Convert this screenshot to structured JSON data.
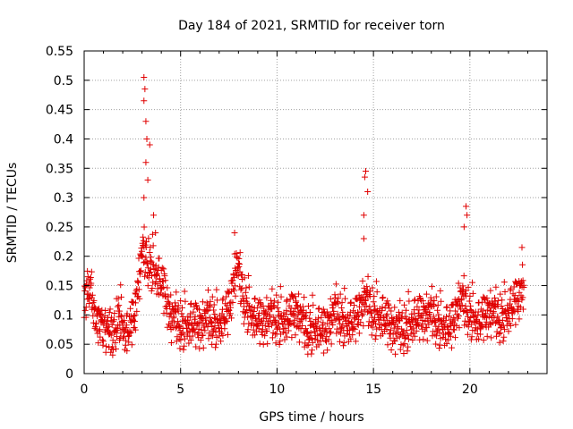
{
  "chart_data": {
    "type": "scatter",
    "title": "Day 184 of 2021, SRMTID for receiver torn",
    "xlabel": "GPS time / hours",
    "ylabel": "SRMTID / TECUs",
    "xlim": [
      0,
      24
    ],
    "ylim": [
      0,
      0.55
    ],
    "x_ticks": [
      0,
      5,
      10,
      15,
      20
    ],
    "x_tick_labels": [
      "0",
      "5",
      "10",
      "15",
      "20"
    ],
    "y_ticks": [
      0,
      0.05,
      0.1,
      0.15,
      0.2,
      0.25,
      0.3,
      0.35,
      0.4,
      0.45,
      0.5,
      0.55
    ],
    "y_tick_labels": [
      "0",
      "0.05",
      "0.1",
      "0.15",
      "0.2",
      "0.25",
      "0.3",
      "0.35",
      "0.4",
      "0.45",
      "0.5",
      "0.55"
    ],
    "grid": true,
    "marker": "+",
    "marker_color": "#e00000",
    "data_range_hours": [
      0,
      22.8
    ],
    "typical_range": [
      0.03,
      0.15
    ],
    "peaks": [
      {
        "x": 3.1,
        "y": 0.505
      },
      {
        "x": 3.15,
        "y": 0.485
      },
      {
        "x": 3.1,
        "y": 0.465
      },
      {
        "x": 3.2,
        "y": 0.43
      },
      {
        "x": 3.25,
        "y": 0.4
      },
      {
        "x": 3.4,
        "y": 0.39
      },
      {
        "x": 3.2,
        "y": 0.36
      },
      {
        "x": 3.3,
        "y": 0.33
      },
      {
        "x": 3.1,
        "y": 0.3
      },
      {
        "x": 3.6,
        "y": 0.27
      },
      {
        "x": 3.7,
        "y": 0.24
      },
      {
        "x": 7.8,
        "y": 0.24
      },
      {
        "x": 14.6,
        "y": 0.345
      },
      {
        "x": 14.55,
        "y": 0.335
      },
      {
        "x": 14.7,
        "y": 0.31
      },
      {
        "x": 14.5,
        "y": 0.27
      },
      {
        "x": 14.5,
        "y": 0.23
      },
      {
        "x": 19.8,
        "y": 0.285
      },
      {
        "x": 19.85,
        "y": 0.27
      },
      {
        "x": 19.7,
        "y": 0.25
      },
      {
        "x": 22.7,
        "y": 0.215
      }
    ],
    "envelope": [
      {
        "x": 0.0,
        "y": 0.11
      },
      {
        "x": 0.3,
        "y": 0.15
      },
      {
        "x": 0.6,
        "y": 0.1
      },
      {
        "x": 1.0,
        "y": 0.07
      },
      {
        "x": 1.5,
        "y": 0.06
      },
      {
        "x": 1.8,
        "y": 0.1
      },
      {
        "x": 2.2,
        "y": 0.06
      },
      {
        "x": 2.6,
        "y": 0.09
      },
      {
        "x": 3.0,
        "y": 0.2
      },
      {
        "x": 3.5,
        "y": 0.18
      },
      {
        "x": 4.0,
        "y": 0.15
      },
      {
        "x": 4.5,
        "y": 0.09
      },
      {
        "x": 5.0,
        "y": 0.08
      },
      {
        "x": 5.5,
        "y": 0.08
      },
      {
        "x": 6.0,
        "y": 0.075
      },
      {
        "x": 6.5,
        "y": 0.09
      },
      {
        "x": 7.0,
        "y": 0.08
      },
      {
        "x": 7.5,
        "y": 0.1
      },
      {
        "x": 7.9,
        "y": 0.18
      },
      {
        "x": 8.3,
        "y": 0.12
      },
      {
        "x": 8.8,
        "y": 0.09
      },
      {
        "x": 9.2,
        "y": 0.08
      },
      {
        "x": 9.6,
        "y": 0.09
      },
      {
        "x": 10.0,
        "y": 0.09
      },
      {
        "x": 10.5,
        "y": 0.085
      },
      {
        "x": 11.0,
        "y": 0.1
      },
      {
        "x": 11.5,
        "y": 0.07
      },
      {
        "x": 12.0,
        "y": 0.075
      },
      {
        "x": 12.5,
        "y": 0.065
      },
      {
        "x": 13.0,
        "y": 0.1
      },
      {
        "x": 13.5,
        "y": 0.085
      },
      {
        "x": 14.0,
        "y": 0.08
      },
      {
        "x": 14.5,
        "y": 0.12
      },
      {
        "x": 15.0,
        "y": 0.1
      },
      {
        "x": 15.5,
        "y": 0.09
      },
      {
        "x": 16.0,
        "y": 0.07
      },
      {
        "x": 16.5,
        "y": 0.07
      },
      {
        "x": 17.0,
        "y": 0.085
      },
      {
        "x": 17.5,
        "y": 0.09
      },
      {
        "x": 18.0,
        "y": 0.095
      },
      {
        "x": 18.5,
        "y": 0.08
      },
      {
        "x": 19.0,
        "y": 0.07
      },
      {
        "x": 19.5,
        "y": 0.12
      },
      {
        "x": 20.0,
        "y": 0.1
      },
      {
        "x": 20.5,
        "y": 0.08
      },
      {
        "x": 21.0,
        "y": 0.1
      },
      {
        "x": 21.5,
        "y": 0.09
      },
      {
        "x": 22.0,
        "y": 0.1
      },
      {
        "x": 22.5,
        "y": 0.12
      },
      {
        "x": 22.8,
        "y": 0.15
      }
    ]
  }
}
